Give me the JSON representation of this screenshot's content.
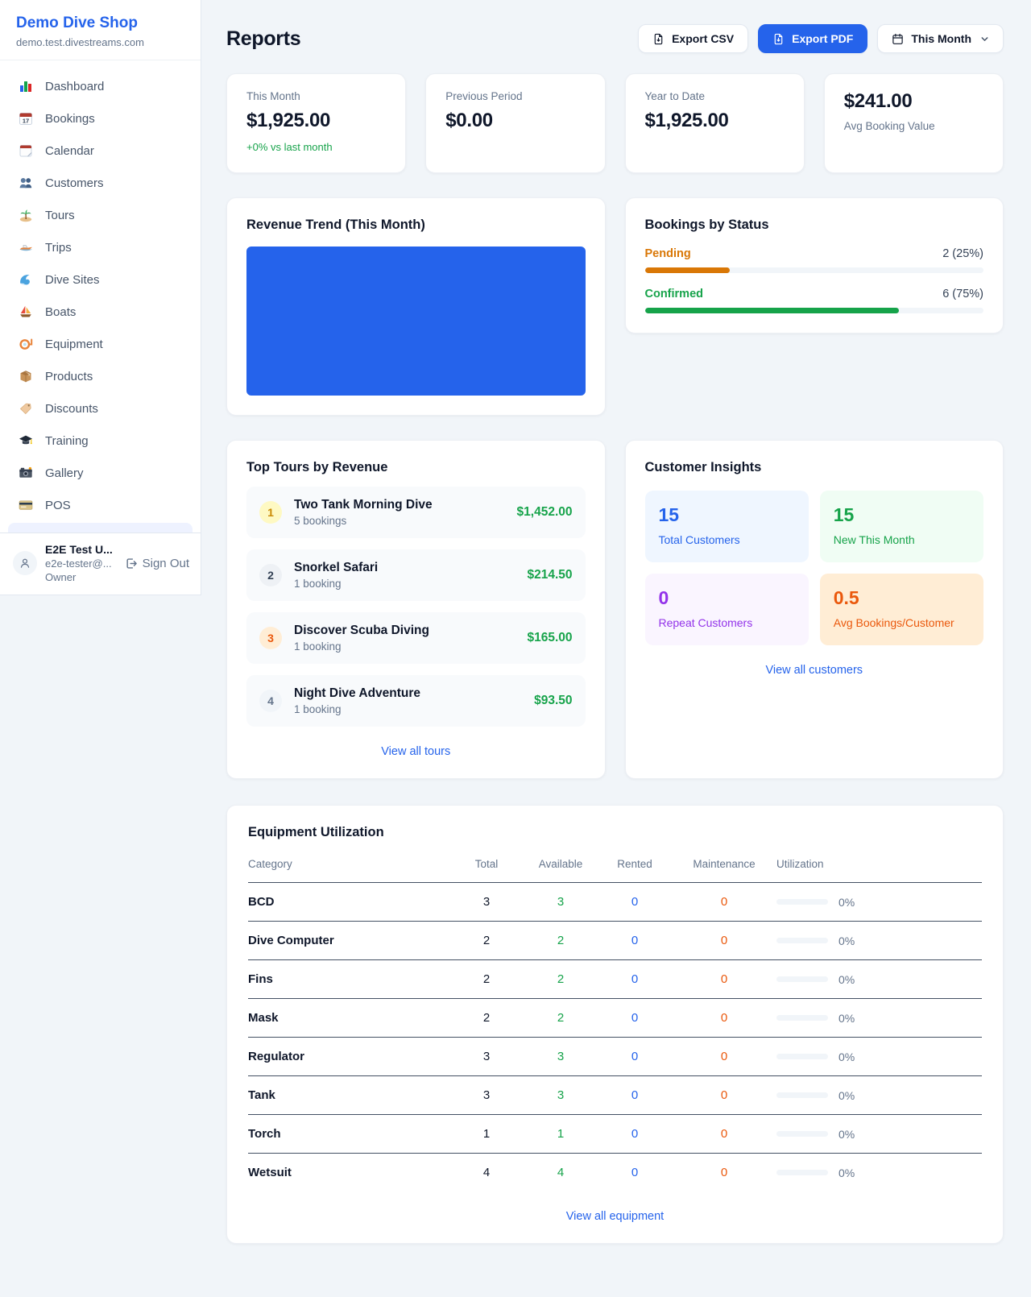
{
  "sidebar": {
    "shop_name": "Demo Dive Shop",
    "domain": "demo.test.divestreams.com",
    "nav": [
      {
        "icon": "bar-chart",
        "label": "Dashboard"
      },
      {
        "icon": "calendar-date",
        "label": "Bookings"
      },
      {
        "icon": "calendar-pad",
        "label": "Calendar"
      },
      {
        "icon": "users",
        "label": "Customers"
      },
      {
        "icon": "island",
        "label": "Tours"
      },
      {
        "icon": "speedboat",
        "label": "Trips"
      },
      {
        "icon": "wave",
        "label": "Dive Sites"
      },
      {
        "icon": "sailboat",
        "label": "Boats"
      },
      {
        "icon": "dive-mask",
        "label": "Equipment"
      },
      {
        "icon": "box",
        "label": "Products"
      },
      {
        "icon": "tag",
        "label": "Discounts"
      },
      {
        "icon": "grad-cap",
        "label": "Training"
      },
      {
        "icon": "camera",
        "label": "Gallery"
      },
      {
        "icon": "credit-card",
        "label": "POS"
      }
    ],
    "user": {
      "name": "E2E Test U...",
      "email": "e2e-tester@...",
      "role": "Owner",
      "sign_out": "Sign Out"
    }
  },
  "header": {
    "title": "Reports",
    "export_csv": "Export CSV",
    "export_pdf": "Export PDF",
    "period": "This Month"
  },
  "stats": [
    {
      "label": "This Month",
      "value": "$1,925.00",
      "delta": "+0% vs last month"
    },
    {
      "label": "Previous Period",
      "value": "$0.00"
    },
    {
      "label": "Year to Date",
      "value": "$1,925.00"
    },
    {
      "label": "Avg Booking Value",
      "value": "$241.00"
    }
  ],
  "revenue_trend": {
    "title": "Revenue Trend (This Month)",
    "bar_color": "#2563eb"
  },
  "bookings_by_status": {
    "title": "Bookings by Status",
    "rows": [
      {
        "label": "Pending",
        "count_text": "2 (25%)",
        "pct": "25%",
        "color": "#d97706"
      },
      {
        "label": "Confirmed",
        "count_text": "6 (75%)",
        "pct": "75%",
        "color": "#16a34a"
      }
    ]
  },
  "top_tours": {
    "title": "Top Tours by Revenue",
    "view_all": "View all tours",
    "items": [
      {
        "rank": "1",
        "name": "Two Tank Morning Dive",
        "bookings": "5 bookings",
        "amount": "$1,452.00",
        "badge_bg": "#fef9c3",
        "badge_color": "#ca8a04"
      },
      {
        "rank": "2",
        "name": "Snorkel Safari",
        "bookings": "1 booking",
        "amount": "$214.50",
        "badge_bg": "#eef1f5",
        "badge_color": "#334155"
      },
      {
        "rank": "3",
        "name": "Discover Scuba Diving",
        "bookings": "1 booking",
        "amount": "$165.00",
        "badge_bg": "#ffedd5",
        "badge_color": "#ea580c"
      },
      {
        "rank": "4",
        "name": "Night Dive Adventure",
        "bookings": "1 booking",
        "amount": "$93.50",
        "badge_bg": "#f1f5f9",
        "badge_color": "#64748b"
      }
    ]
  },
  "customer_insights": {
    "title": "Customer Insights",
    "view_all": "View all customers",
    "tiles": [
      {
        "value": "15",
        "label": "Total Customers",
        "bg": "#eff6ff",
        "color": "#2563eb"
      },
      {
        "value": "15",
        "label": "New This Month",
        "bg": "#f0fdf4",
        "color": "#16a34a"
      },
      {
        "value": "0",
        "label": "Repeat Customers",
        "bg": "#faf5ff",
        "color": "#9333ea"
      },
      {
        "value": "0.5",
        "label": "Avg Bookings/Customer",
        "bg": "#ffedd5",
        "color": "#ea580c"
      }
    ]
  },
  "equipment": {
    "title": "Equipment Utilization",
    "view_all": "View all equipment",
    "columns": [
      "Category",
      "Total",
      "Available",
      "Rented",
      "Maintenance",
      "Utilization"
    ],
    "rows": [
      {
        "category": "BCD",
        "total": "3",
        "available": "3",
        "rented": "0",
        "maintenance": "0",
        "utilization": "0%"
      },
      {
        "category": "Dive Computer",
        "total": "2",
        "available": "2",
        "rented": "0",
        "maintenance": "0",
        "utilization": "0%"
      },
      {
        "category": "Fins",
        "total": "2",
        "available": "2",
        "rented": "0",
        "maintenance": "0",
        "utilization": "0%"
      },
      {
        "category": "Mask",
        "total": "2",
        "available": "2",
        "rented": "0",
        "maintenance": "0",
        "utilization": "0%"
      },
      {
        "category": "Regulator",
        "total": "3",
        "available": "3",
        "rented": "0",
        "maintenance": "0",
        "utilization": "0%"
      },
      {
        "category": "Tank",
        "total": "3",
        "available": "3",
        "rented": "0",
        "maintenance": "0",
        "utilization": "0%"
      },
      {
        "category": "Torch",
        "total": "1",
        "available": "1",
        "rented": "0",
        "maintenance": "0",
        "utilization": "0%"
      },
      {
        "category": "Wetsuit",
        "total": "4",
        "available": "4",
        "rented": "0",
        "maintenance": "0",
        "utilization": "0%"
      }
    ]
  }
}
